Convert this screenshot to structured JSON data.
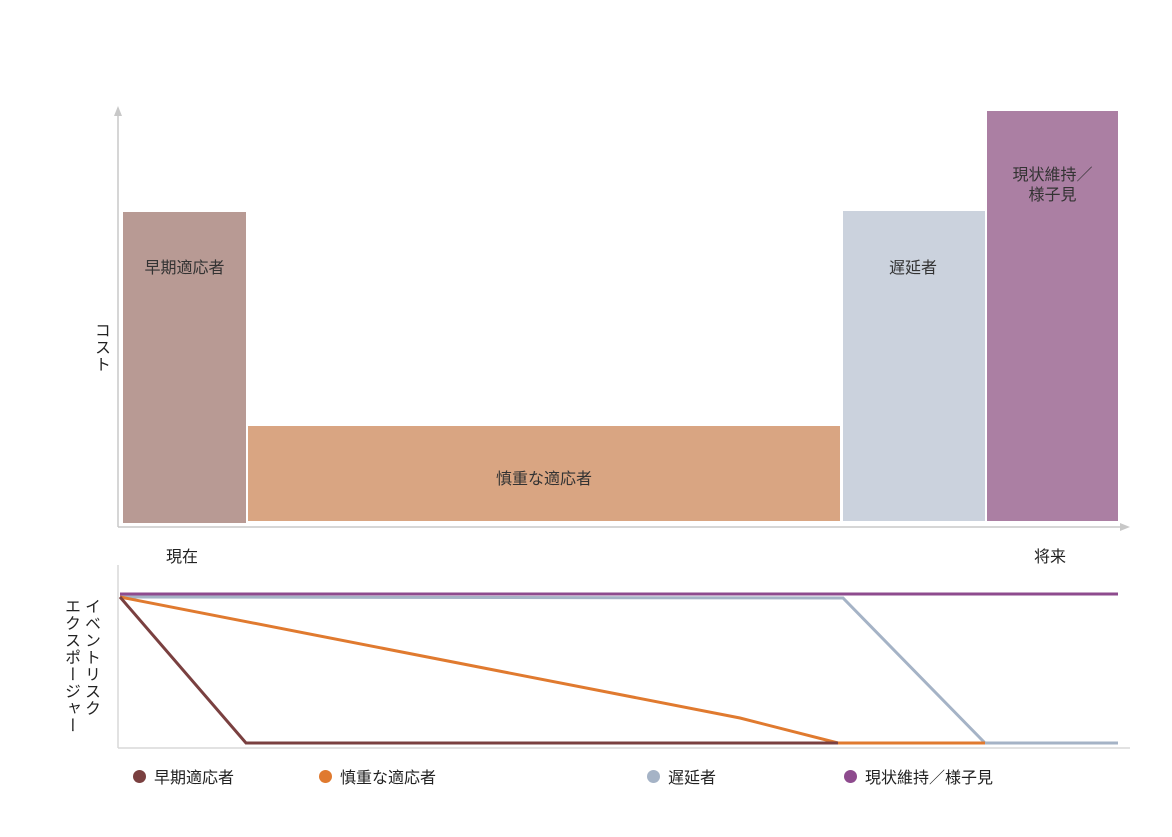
{
  "cost_chart": {
    "y_label": "コスト",
    "x_start": "現在",
    "x_end": "将来",
    "blocks": [
      {
        "label": "早期適応者",
        "color": "#b89a94"
      },
      {
        "label": "慎重な適応者",
        "color": "#d9a582"
      },
      {
        "label": "遅延者",
        "color": "#cbd2dd"
      },
      {
        "label": "現状維持／様子見",
        "color": "#ab7fa3"
      }
    ]
  },
  "exposure_chart": {
    "y_label": [
      "イベントリスク",
      "エクスポージャー"
    ]
  },
  "legend": [
    {
      "label": "早期適応者",
      "color": "#7a4040"
    },
    {
      "label": "慎重な適応者",
      "color": "#e07a2f"
    },
    {
      "label": "遅延者",
      "color": "#a5b3c6"
    },
    {
      "label": "現状維持／様子見",
      "color": "#8e4b8e"
    }
  ]
}
